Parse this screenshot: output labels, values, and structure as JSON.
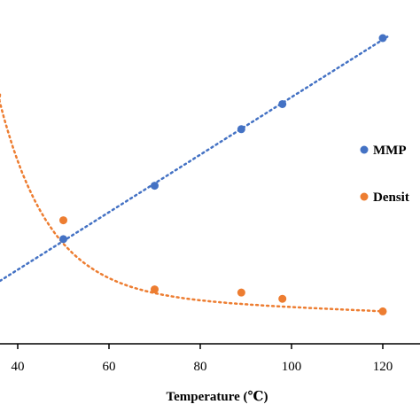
{
  "chart_data": {
    "type": "scatter",
    "xlabel": "Temperature (℃)",
    "x_ticks": [
      "40",
      "60",
      "80",
      "100",
      "120"
    ],
    "xlim": [
      34,
      128
    ],
    "grid": false,
    "legend_position": "right",
    "series": [
      {
        "name": "MMP",
        "color": "#4472c4",
        "trend": "linear-dotted",
        "x": [
          50,
          70,
          89,
          98,
          120
        ],
        "y": [
          0.36,
          0.53,
          0.71,
          0.79,
          1.0
        ]
      },
      {
        "name": "Densit",
        "color": "#ed7d31",
        "trend": "curve-dotted",
        "x": [
          50,
          70,
          89,
          98,
          120
        ],
        "y": [
          0.42,
          0.2,
          0.19,
          0.17,
          0.13
        ]
      }
    ]
  }
}
